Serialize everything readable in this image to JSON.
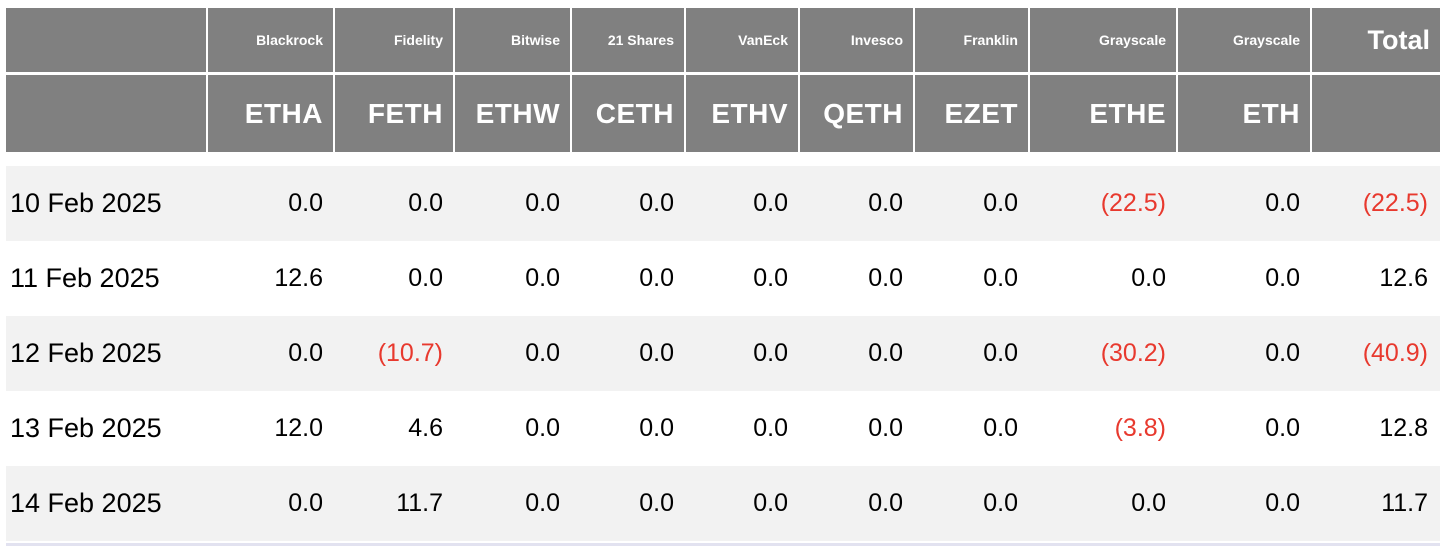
{
  "table": {
    "issuers": [
      "Blackrock",
      "Fidelity",
      "Bitwise",
      "21 Shares",
      "VanEck",
      "Invesco",
      "Franklin",
      "Grayscale",
      "Grayscale"
    ],
    "total_label": "Total",
    "tickers": [
      "ETHA",
      "FETH",
      "ETHW",
      "CETH",
      "ETHV",
      "QETH",
      "EZET",
      "ETHE",
      "ETH"
    ],
    "rows": [
      {
        "date": "10 Feb 2025",
        "cells": [
          "0.0",
          "0.0",
          "0.0",
          "0.0",
          "0.0",
          "0.0",
          "0.0",
          "(22.5)",
          "0.0",
          "(22.5)"
        ]
      },
      {
        "date": "11 Feb 2025",
        "cells": [
          "12.6",
          "0.0",
          "0.0",
          "0.0",
          "0.0",
          "0.0",
          "0.0",
          "0.0",
          "0.0",
          "12.6"
        ]
      },
      {
        "date": "12 Feb 2025",
        "cells": [
          "0.0",
          "(10.7)",
          "0.0",
          "0.0",
          "0.0",
          "0.0",
          "0.0",
          "(30.2)",
          "0.0",
          "(40.9)"
        ]
      },
      {
        "date": "13 Feb 2025",
        "cells": [
          "12.0",
          "4.6",
          "0.0",
          "0.0",
          "0.0",
          "0.0",
          "0.0",
          "(3.8)",
          "0.0",
          "12.8"
        ]
      },
      {
        "date": "14 Feb 2025",
        "cells": [
          "0.0",
          "11.7",
          "0.0",
          "0.0",
          "0.0",
          "0.0",
          "0.0",
          "0.0",
          "0.0",
          "11.7"
        ]
      }
    ],
    "colors": {
      "header_bg": "#808080",
      "header_text": "#ffffff",
      "negative": "#e8392e",
      "row_alt": "#f2f2f2",
      "row_white": "#ffffff"
    }
  },
  "chart_data": {
    "type": "table",
    "column_groups": [
      "Blackrock",
      "Fidelity",
      "Bitwise",
      "21 Shares",
      "VanEck",
      "Invesco",
      "Franklin",
      "Grayscale",
      "Grayscale",
      ""
    ],
    "columns": [
      "ETHA",
      "FETH",
      "ETHW",
      "CETH",
      "ETHV",
      "QETH",
      "EZET",
      "ETHE",
      "ETH",
      "Total"
    ],
    "rows": [
      {
        "date": "10 Feb 2025",
        "values": [
          0.0,
          0.0,
          0.0,
          0.0,
          0.0,
          0.0,
          0.0,
          -22.5,
          0.0
        ],
        "total": -22.5
      },
      {
        "date": "11 Feb 2025",
        "values": [
          12.6,
          0.0,
          0.0,
          0.0,
          0.0,
          0.0,
          0.0,
          0.0,
          0.0
        ],
        "total": 12.6
      },
      {
        "date": "12 Feb 2025",
        "values": [
          0.0,
          -10.7,
          0.0,
          0.0,
          0.0,
          0.0,
          0.0,
          -30.2,
          0.0
        ],
        "total": -40.9
      },
      {
        "date": "13 Feb 2025",
        "values": [
          12.0,
          4.6,
          0.0,
          0.0,
          0.0,
          0.0,
          0.0,
          -3.8,
          0.0
        ],
        "total": 12.8
      },
      {
        "date": "14 Feb 2025",
        "values": [
          0.0,
          11.7,
          0.0,
          0.0,
          0.0,
          0.0,
          0.0,
          0.0,
          0.0
        ],
        "total": 11.7
      }
    ],
    "notes": "Negative values shown in parentheses and red"
  }
}
